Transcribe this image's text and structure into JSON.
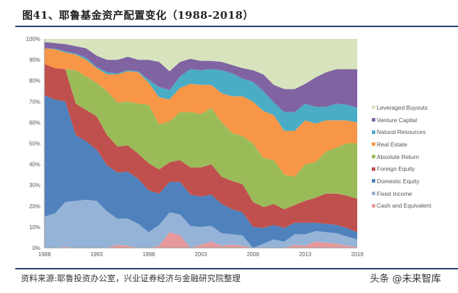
{
  "title": "图41、耶鲁基金资产配置变化（1988-2018）",
  "source": "资料来源:耶鲁投资办公室，兴业证券经济与金融研究院整理",
  "watermark": "头条 @未来智库",
  "chart_data": {
    "type": "area",
    "stacked": true,
    "x": [
      1988,
      1989,
      1990,
      1991,
      1992,
      1993,
      1994,
      1995,
      1996,
      1997,
      1998,
      1999,
      2000,
      2001,
      2002,
      2003,
      2004,
      2005,
      2006,
      2007,
      2008,
      2009,
      2010,
      2011,
      2012,
      2013,
      2014,
      2015,
      2016,
      2017,
      2018
    ],
    "x_ticks": [
      "1988",
      "1993",
      "1998",
      "2003",
      "2008",
      "2013",
      "2018"
    ],
    "y_ticks": [
      "0%",
      "10%",
      "20%",
      "30%",
      "40%",
      "50%",
      "60%",
      "70%",
      "80%",
      "90%",
      "100%"
    ],
    "ylim": [
      0,
      100
    ],
    "grid": false,
    "legend_position": "right",
    "series": [
      {
        "name": "Cash and Equivalent",
        "color": "#e6989a",
        "values": [
          0,
          0,
          0.5,
          0,
          0,
          0,
          0,
          1.5,
          1,
          0,
          0,
          1,
          7.5,
          6,
          0,
          1.5,
          3,
          1,
          1.5,
          1,
          0,
          0,
          0,
          0,
          1.5,
          1,
          3,
          2.5,
          2,
          1,
          0.5
        ]
      },
      {
        "name": "Fixed Income",
        "color": "#95b3d7",
        "values": [
          15,
          16.5,
          21.5,
          22.5,
          23,
          22.5,
          17.5,
          12.5,
          13,
          11.5,
          7.5,
          10,
          9.5,
          10,
          10.5,
          8.5,
          7.5,
          6,
          5,
          5,
          0,
          2,
          4,
          3,
          5,
          5.5,
          5,
          5,
          5,
          4.5,
          3.5
        ]
      },
      {
        "name": "Domestic Equity",
        "color": "#4f81bd",
        "values": [
          58,
          54.5,
          48,
          31.5,
          28,
          24.5,
          22,
          22,
          22.5,
          21.5,
          20,
          15,
          14.5,
          15.5,
          15,
          14.5,
          15,
          14,
          12,
          11,
          10,
          7.5,
          7,
          6.5,
          5.5,
          5.5,
          4,
          4,
          4,
          4,
          3.5
        ]
      },
      {
        "name": "Foreign Equity",
        "color": "#c0504d",
        "values": [
          15,
          15,
          15.5,
          15,
          15,
          16,
          14.5,
          12.5,
          12.5,
          12,
          13,
          11.5,
          9.5,
          10.5,
          13,
          14,
          14.5,
          13,
          13.5,
          13.5,
          12,
          10,
          10,
          9,
          8.5,
          10.5,
          12,
          14.5,
          15,
          15.5,
          16
        ]
      },
      {
        "name": "Absolute Return",
        "color": "#9bbb59",
        "values": [
          0,
          0,
          0,
          16,
          16,
          16,
          21,
          21,
          21,
          24,
          28,
          21.5,
          19.5,
          23,
          26.5,
          25.5,
          27,
          26,
          23,
          23,
          28,
          23.5,
          21,
          16.5,
          13.5,
          17.5,
          17,
          20,
          22,
          25,
          26.5
        ]
      },
      {
        "name": "Real Estate",
        "color": "#f79646",
        "values": [
          7.5,
          9,
          8,
          7.5,
          8,
          7,
          8,
          13.5,
          14.5,
          15,
          10.5,
          13,
          10.5,
          11.5,
          13.5,
          14,
          11,
          14,
          17.5,
          19,
          20,
          22.5,
          21.5,
          21,
          22,
          21,
          18.5,
          15,
          13,
          11,
          10
        ]
      },
      {
        "name": "Natural Resources",
        "color": "#4bacc6",
        "values": [
          0,
          0.3,
          0.5,
          0.5,
          1,
          0.5,
          1,
          0.5,
          0.5,
          0.5,
          1.5,
          5,
          4.5,
          5.5,
          7,
          7,
          7.5,
          11,
          11,
          8.5,
          9.5,
          9.5,
          6,
          9,
          9,
          8,
          8,
          6.5,
          8,
          7.5,
          7
        ]
      },
      {
        "name": "Venture Capital",
        "color": "#8064a2",
        "values": [
          3,
          2.7,
          3.5,
          3.5,
          4.5,
          5.5,
          6,
          6.5,
          6.5,
          5.5,
          9.5,
          12,
          9,
          7,
          5,
          4.5,
          4,
          4,
          4,
          5,
          5.5,
          8,
          8.5,
          11,
          11,
          9.5,
          14,
          16.5,
          16.5,
          17,
          18.5
        ]
      },
      {
        "name": "Leveraged Buyouts",
        "color": "#d7e4bd",
        "values": [
          1.5,
          2,
          2.5,
          3.5,
          4.5,
          8,
          10,
          10,
          8.5,
          10,
          10,
          11,
          15.5,
          11,
          9.5,
          10.5,
          10.5,
          11,
          12.5,
          14,
          15,
          17,
          22,
          24,
          24,
          21.5,
          18.5,
          16,
          14.5,
          14.5,
          14.5
        ]
      }
    ]
  }
}
